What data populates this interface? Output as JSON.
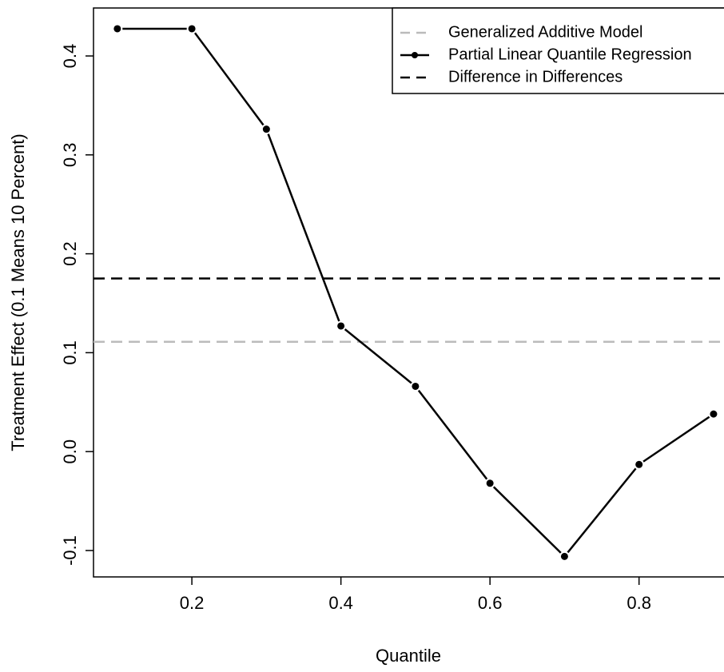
{
  "chart_data": {
    "type": "line",
    "x_label": "Quantile",
    "y_label": "Treatment Effect (0.1 Means 10 Percent)",
    "x": [
      0.1,
      0.2,
      0.3,
      0.4,
      0.5,
      0.6,
      0.7,
      0.8,
      0.9
    ],
    "series": [
      {
        "name": "Partial Linear Quantile Regression",
        "color": "#000000",
        "values": [
          0.4275,
          0.4275,
          0.326,
          0.127,
          0.066,
          -0.032,
          -0.106,
          -0.013,
          0.038
        ]
      }
    ],
    "reference_lines": [
      {
        "name": "Generalized Additive Model",
        "color": "#bbbbbb",
        "value": 0.111
      },
      {
        "name": "Difference in Differences",
        "color": "#000000",
        "value": 0.175
      }
    ],
    "xlim": [
      0.068,
      0.914
    ],
    "xticks": [
      0.2,
      0.4,
      0.6,
      0.8
    ],
    "ylim": [
      -0.1267,
      0.4485
    ],
    "yticks": [
      -0.1,
      {
        "value": 0.0,
        "label": "0.0"
      },
      0.1,
      0.2,
      0.3,
      0.4
    ],
    "legend": "top-right"
  }
}
